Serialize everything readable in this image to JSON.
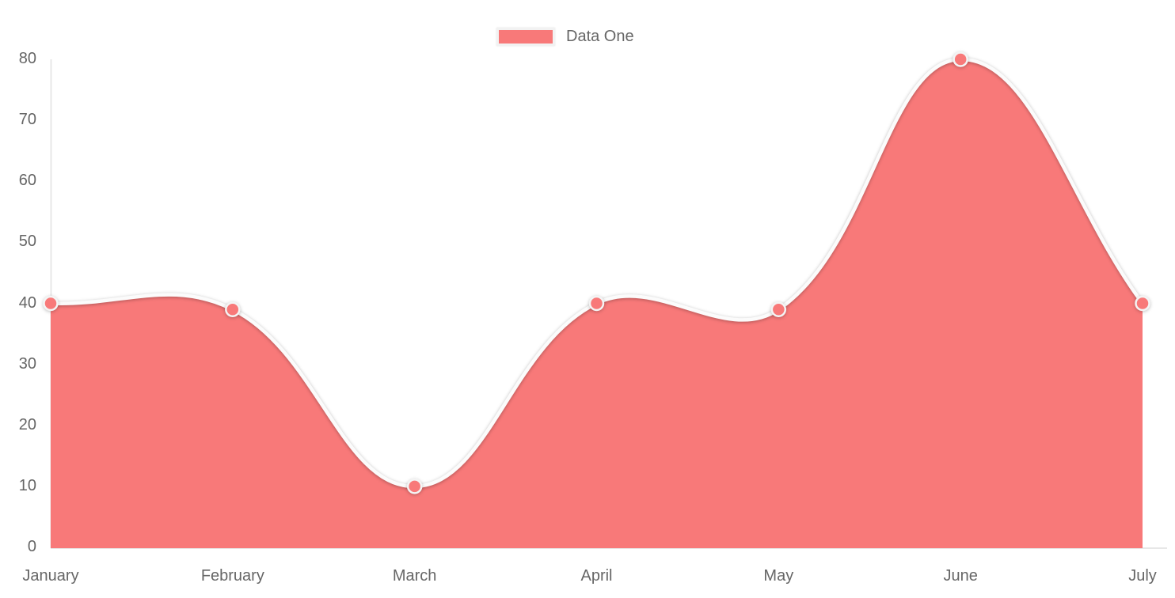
{
  "legend": {
    "label": "Data One",
    "swatch_color": "#f87979"
  },
  "chart_data": {
    "type": "area",
    "title": "",
    "xlabel": "",
    "ylabel": "",
    "categories": [
      "January",
      "February",
      "March",
      "April",
      "May",
      "June",
      "July"
    ],
    "series": [
      {
        "name": "Data One",
        "values": [
          40,
          39,
          10,
          40,
          39,
          80,
          40
        ]
      }
    ],
    "ylim": [
      0,
      80
    ],
    "ytick_step": 10,
    "yticks": [
      0,
      10,
      20,
      30,
      40,
      50,
      60,
      70,
      80
    ],
    "grid": "off",
    "legend_position": "top-center",
    "smooth": true,
    "tension": 0.4,
    "colors": {
      "area_fill": "#f87979",
      "line": "#fbfbfb",
      "point_fill": "#f87979",
      "point_border": "#f4f4f4",
      "axis_line": "#e7e7e7",
      "text": "#666666",
      "background": "#ffffff"
    }
  }
}
